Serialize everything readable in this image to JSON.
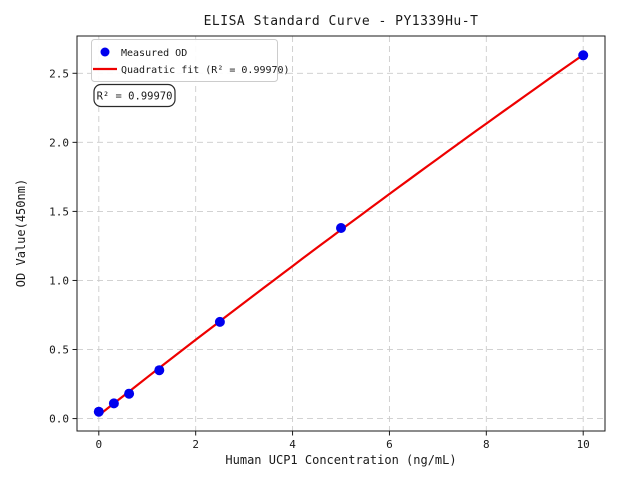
{
  "chart_data": {
    "type": "scatter",
    "title": "ELISA Standard Curve - PY1339Hu-T",
    "xlabel": "Human UCP1 Concentration (ng/mL)",
    "ylabel": "OD Value(450nm)",
    "xlim": [
      -0.45,
      10.45
    ],
    "ylim": [
      -0.09,
      2.77
    ],
    "x_ticks": {
      "values": [
        0,
        2,
        4,
        6,
        8,
        10
      ],
      "labels": [
        "0",
        "2",
        "4",
        "6",
        "8",
        "10"
      ]
    },
    "y_ticks": {
      "values": [
        0.0,
        0.5,
        1.0,
        1.5,
        2.0,
        2.5
      ],
      "labels": [
        "0.0",
        "0.5",
        "1.0",
        "1.5",
        "2.0",
        "2.5"
      ]
    },
    "grid": {
      "visible": true,
      "style": "dashed"
    },
    "series": [
      {
        "name": "Measured OD",
        "type": "scatter",
        "marker": "circle",
        "color": "#0000ee",
        "x": [
          0,
          0.312,
          0.625,
          1.25,
          2.5,
          5,
          10
        ],
        "y": [
          0.05,
          0.11,
          0.18,
          0.35,
          0.7,
          1.38,
          2.63
        ]
      },
      {
        "name": "Quadratic fit (R² = 0.99970)",
        "type": "line",
        "color": "#ee0000",
        "fit": {
          "kind": "quadratic",
          "a": 0.024,
          "b": 0.276,
          "c": -0.0015,
          "x_range": [
            0,
            10
          ]
        }
      }
    ],
    "legend": {
      "position": "upper left"
    },
    "annotation": {
      "text": "R² = 0.99970"
    },
    "colors": {
      "grid": "#cccccc",
      "axis": "#1a1a1a",
      "text": "#1a1a1a",
      "background": "#ffffff"
    }
  }
}
